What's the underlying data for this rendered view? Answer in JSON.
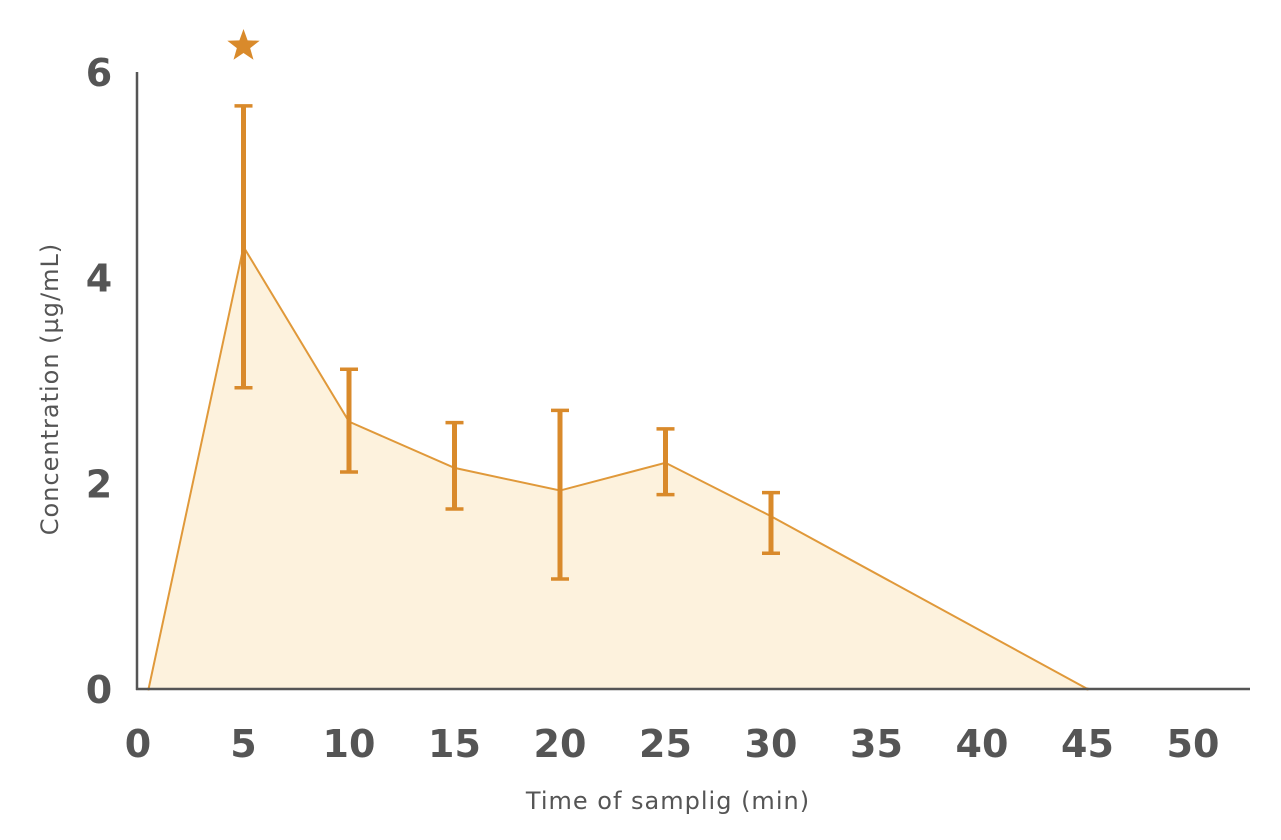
{
  "chart_data": {
    "type": "area",
    "xlabel": "Time of samplig (min)",
    "ylabel": "Concentration (µg/mL)",
    "xlim": [
      0,
      50
    ],
    "ylim": [
      0,
      6
    ],
    "x_ticks": [
      "0",
      "5",
      "10",
      "15",
      "20",
      "25",
      "30",
      "35",
      "40",
      "45",
      "50"
    ],
    "y_ticks": [
      "0",
      "2",
      "4",
      "6"
    ],
    "grid": false,
    "legend": "none",
    "series": [
      {
        "x": [
          0.5,
          5,
          10,
          15,
          20,
          25,
          30,
          45
        ],
        "y": [
          0,
          4.3,
          2.6,
          2.15,
          1.93,
          2.2,
          1.68,
          0
        ]
      }
    ],
    "error_bars": [
      {
        "x": 5,
        "low": 2.93,
        "high": 5.67
      },
      {
        "x": 10,
        "low": 2.11,
        "high": 3.11
      },
      {
        "x": 15,
        "low": 1.75,
        "high": 2.59
      },
      {
        "x": 20,
        "low": 1.07,
        "high": 2.71
      },
      {
        "x": 25,
        "low": 1.89,
        "high": 2.53
      },
      {
        "x": 30,
        "low": 1.32,
        "high": 1.91
      }
    ],
    "annotations": [
      {
        "x": 5,
        "symbol": "★"
      }
    ],
    "colors": {
      "line": "#e0993a",
      "fill": "#fdf2dd",
      "error_bar": "#d98a2b",
      "star": "#d98a2b",
      "axis": "#555555",
      "text": "#555555"
    }
  }
}
